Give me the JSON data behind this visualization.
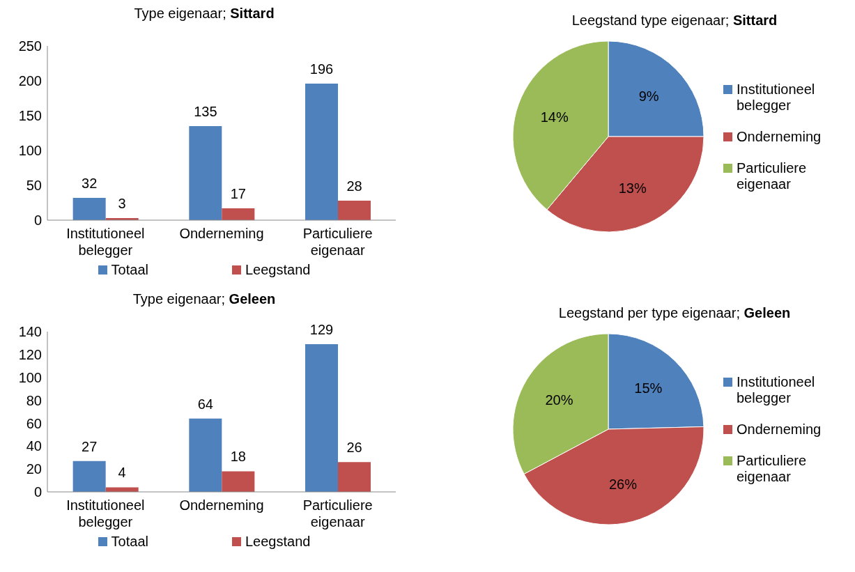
{
  "chart_data": [
    {
      "type": "bar",
      "title": "Type eigenaar; Sittard",
      "categories": [
        "Institutioneel belegger",
        "Onderneming",
        "Particuliere eigenaar"
      ],
      "series": [
        {
          "name": "Totaal",
          "color": "#4f81bd",
          "values": [
            32,
            135,
            196
          ]
        },
        {
          "name": "Leegstand",
          "color": "#c0504d",
          "values": [
            3,
            17,
            28
          ]
        }
      ],
      "ylim": [
        0,
        250
      ],
      "yticks": [
        0,
        50,
        100,
        150,
        200,
        250
      ],
      "data_labels": true,
      "legend": "bottom",
      "grid": false
    },
    {
      "type": "pie",
      "title": "Leegstand type eigenaar; Sittard",
      "categories": [
        "Institutioneel belegger",
        "Onderneming",
        "Particuliere eigenaar"
      ],
      "values": [
        9,
        13,
        14
      ],
      "value_labels": [
        "9%",
        "13%",
        "14%"
      ],
      "colors": [
        "#4f81bd",
        "#c0504d",
        "#9bbb59"
      ],
      "legend": "right"
    },
    {
      "type": "bar",
      "title": "Type eigenaar; Geleen",
      "categories": [
        "Institutioneel belegger",
        "Onderneming",
        "Particuliere eigenaar"
      ],
      "series": [
        {
          "name": "Totaal",
          "color": "#4f81bd",
          "values": [
            27,
            64,
            129
          ]
        },
        {
          "name": "Leegstand",
          "color": "#c0504d",
          "values": [
            4,
            18,
            26
          ]
        }
      ],
      "ylim": [
        0,
        140
      ],
      "yticks": [
        0,
        20,
        40,
        60,
        80,
        100,
        120,
        140
      ],
      "data_labels": true,
      "legend": "bottom",
      "grid": false
    },
    {
      "type": "pie",
      "title": "Leegstand per type eigenaar; Geleen",
      "categories": [
        "Institutioneel belegger",
        "Onderneming",
        "Particuliere eigenaar"
      ],
      "values": [
        15,
        26,
        20
      ],
      "value_labels": [
        "15%",
        "26%",
        "20%"
      ],
      "colors": [
        "#4f81bd",
        "#c0504d",
        "#9bbb59"
      ],
      "legend": "right"
    }
  ]
}
